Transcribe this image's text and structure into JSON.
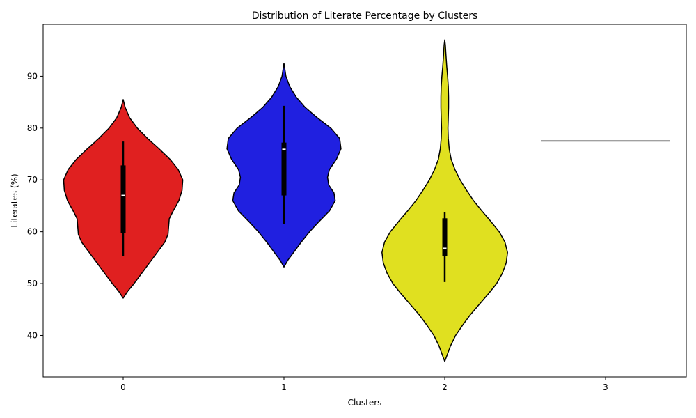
{
  "chart_data": {
    "type": "violin",
    "title": "Distribution of Literate Percentage by Clusters",
    "xlabel": "Clusters",
    "ylabel": "Literates (%)",
    "categories": [
      "0",
      "1",
      "2",
      "3"
    ],
    "y_ticks": [
      40,
      50,
      60,
      70,
      80,
      90
    ],
    "ylim": [
      32,
      100
    ],
    "grid": false,
    "legend": "none",
    "series": [
      {
        "category": "0",
        "color": "#e02020",
        "min": 47.2,
        "max": 85.5,
        "whisker_low": 55.3,
        "whisker_high": 77.4,
        "q1": 59.8,
        "median": 67.0,
        "q3": 72.8,
        "density": [
          [
            47.2,
            0.0
          ],
          [
            48.5,
            0.07
          ],
          [
            50.0,
            0.17
          ],
          [
            52.0,
            0.29
          ],
          [
            54.0,
            0.41
          ],
          [
            56.0,
            0.53
          ],
          [
            58.0,
            0.65
          ],
          [
            59.5,
            0.7
          ],
          [
            61.0,
            0.71
          ],
          [
            62.5,
            0.72
          ],
          [
            64.0,
            0.78
          ],
          [
            66.0,
            0.87
          ],
          [
            68.0,
            0.92
          ],
          [
            70.0,
            0.93
          ],
          [
            72.0,
            0.86
          ],
          [
            74.0,
            0.73
          ],
          [
            76.0,
            0.56
          ],
          [
            78.0,
            0.38
          ],
          [
            80.0,
            0.22
          ],
          [
            82.0,
            0.1
          ],
          [
            84.0,
            0.03
          ],
          [
            85.5,
            0.0
          ]
        ]
      },
      {
        "category": "1",
        "color": "#2020e0",
        "min": 53.2,
        "max": 92.5,
        "whisker_low": 61.5,
        "whisker_high": 84.3,
        "q1": 67.0,
        "median": 75.9,
        "q3": 77.2,
        "density": [
          [
            53.2,
            0.0
          ],
          [
            54.5,
            0.06
          ],
          [
            56.0,
            0.15
          ],
          [
            58.0,
            0.27
          ],
          [
            60.0,
            0.4
          ],
          [
            62.0,
            0.55
          ],
          [
            64.0,
            0.71
          ],
          [
            66.0,
            0.8
          ],
          [
            67.5,
            0.78
          ],
          [
            69.0,
            0.7
          ],
          [
            70.5,
            0.68
          ],
          [
            72.0,
            0.71
          ],
          [
            74.0,
            0.82
          ],
          [
            76.0,
            0.89
          ],
          [
            78.0,
            0.87
          ],
          [
            80.0,
            0.73
          ],
          [
            82.0,
            0.52
          ],
          [
            84.0,
            0.33
          ],
          [
            86.0,
            0.19
          ],
          [
            88.0,
            0.09
          ],
          [
            90.0,
            0.03
          ],
          [
            92.5,
            0.0
          ]
        ]
      },
      {
        "category": "2",
        "color": "#e0e020",
        "min": 35.0,
        "max": 97.0,
        "whisker_low": 50.3,
        "whisker_high": 63.8,
        "q1": 55.3,
        "median": 56.8,
        "q3": 62.6,
        "density": [
          [
            35.0,
            0.0
          ],
          [
            36.0,
            0.03
          ],
          [
            38.0,
            0.09
          ],
          [
            40.0,
            0.17
          ],
          [
            42.0,
            0.28
          ],
          [
            44.0,
            0.4
          ],
          [
            46.0,
            0.54
          ],
          [
            48.0,
            0.68
          ],
          [
            50.0,
            0.81
          ],
          [
            52.0,
            0.9
          ],
          [
            54.0,
            0.96
          ],
          [
            56.0,
            0.98
          ],
          [
            58.0,
            0.94
          ],
          [
            60.0,
            0.85
          ],
          [
            62.0,
            0.72
          ],
          [
            64.0,
            0.58
          ],
          [
            66.0,
            0.45
          ],
          [
            68.0,
            0.34
          ],
          [
            70.0,
            0.24
          ],
          [
            72.0,
            0.16
          ],
          [
            74.0,
            0.1
          ],
          [
            76.0,
            0.07
          ],
          [
            78.0,
            0.055
          ],
          [
            80.0,
            0.05
          ],
          [
            82.0,
            0.055
          ],
          [
            84.0,
            0.06
          ],
          [
            86.0,
            0.06
          ],
          [
            88.0,
            0.055
          ],
          [
            90.0,
            0.045
          ],
          [
            92.0,
            0.03
          ],
          [
            94.0,
            0.02
          ],
          [
            96.0,
            0.01
          ],
          [
            97.0,
            0.0
          ]
        ]
      },
      {
        "category": "3",
        "color": "#000000",
        "single_value": 77.5
      }
    ]
  }
}
